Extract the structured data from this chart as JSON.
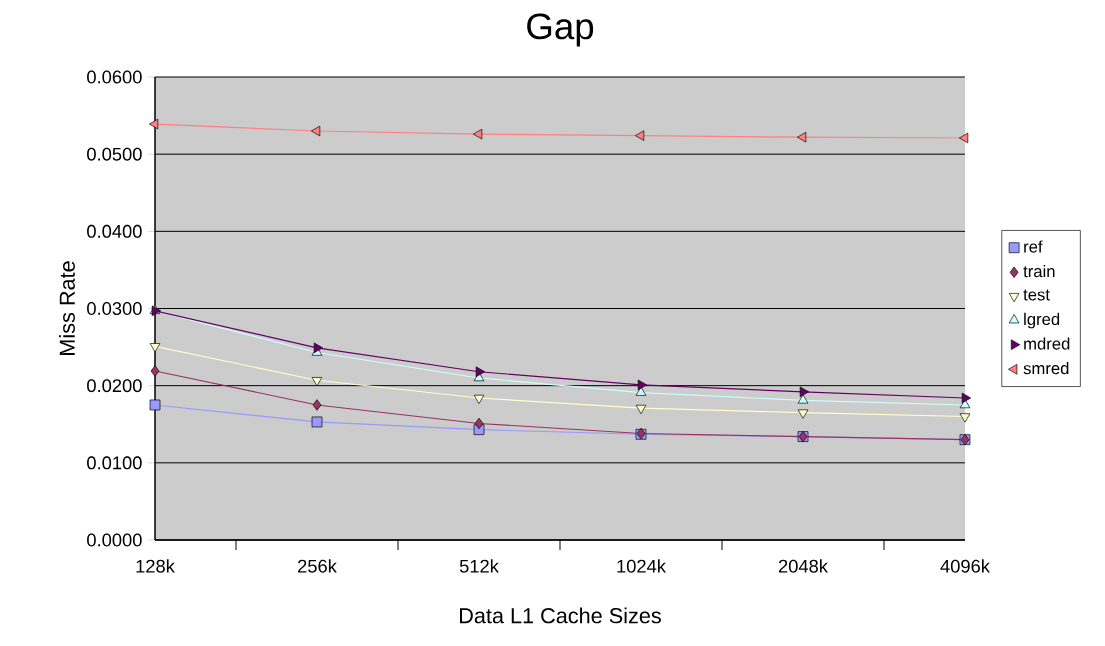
{
  "chart_data": {
    "type": "line",
    "title": "Gap",
    "xlabel": "Data L1 Cache Sizes",
    "ylabel": "Miss Rate",
    "categories": [
      "128k",
      "256k",
      "512k",
      "1024k",
      "2048k",
      "4096k"
    ],
    "series": [
      {
        "name": "ref",
        "color": "#9999ff",
        "marker": "square",
        "values": [
          0.0175,
          0.0153,
          0.0143,
          0.0137,
          0.0134,
          0.013
        ]
      },
      {
        "name": "train",
        "color": "#993366",
        "marker": "diamond",
        "values": [
          0.0219,
          0.0175,
          0.0151,
          0.0138,
          0.0134,
          0.013
        ]
      },
      {
        "name": "test",
        "color": "#ffffcc",
        "marker": "triangle-down",
        "values": [
          0.0251,
          0.0207,
          0.0184,
          0.0171,
          0.0165,
          0.016
        ]
      },
      {
        "name": "lgred",
        "color": "#ccffff",
        "marker": "triangle",
        "values": [
          0.0297,
          0.0243,
          0.021,
          0.0191,
          0.0181,
          0.0175
        ]
      },
      {
        "name": "mdred",
        "color": "#660066",
        "marker": "triangle-right",
        "values": [
          0.0297,
          0.0249,
          0.0218,
          0.0201,
          0.0192,
          0.0184
        ]
      },
      {
        "name": "smred",
        "color": "#ff8080",
        "marker": "triangle-left",
        "values": [
          0.0539,
          0.053,
          0.0526,
          0.0524,
          0.0522,
          0.0521
        ]
      }
    ],
    "ylim": [
      0,
      0.06
    ],
    "yticks": [
      {
        "value": 0,
        "label": "0.0000"
      },
      {
        "value": 0.01,
        "label": "0.0100"
      },
      {
        "value": 0.02,
        "label": "0.0200"
      },
      {
        "value": 0.03,
        "label": "0.0300"
      },
      {
        "value": 0.04,
        "label": "0.0400"
      },
      {
        "value": 0.05,
        "label": "0.0500"
      },
      {
        "value": 0.06,
        "label": "0.0600"
      }
    ],
    "grid": "y",
    "legend": "right",
    "line_style": "solid"
  }
}
